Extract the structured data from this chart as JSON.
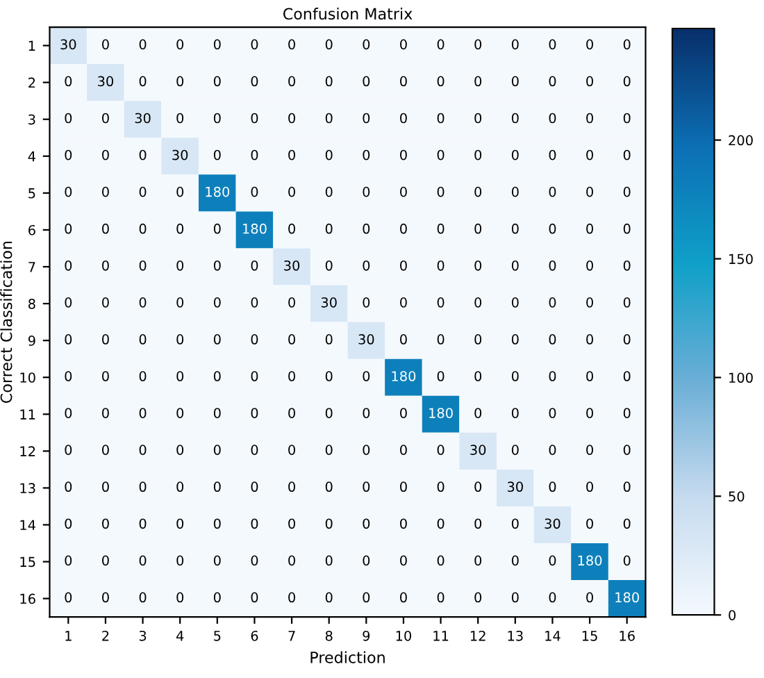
{
  "chart_data": {
    "type": "heatmap",
    "title": "Confusion Matrix",
    "xlabel": "Prediction",
    "ylabel": "Correct Classification",
    "categories": [
      "1",
      "2",
      "3",
      "4",
      "5",
      "6",
      "7",
      "8",
      "9",
      "10",
      "11",
      "12",
      "13",
      "14",
      "15",
      "16"
    ],
    "y_categories": [
      "1",
      "2",
      "3",
      "4",
      "5",
      "6",
      "7",
      "8",
      "9",
      "10",
      "11",
      "12",
      "13",
      "14",
      "15",
      "16"
    ],
    "cells": [
      [
        30,
        0,
        0,
        0,
        0,
        0,
        0,
        0,
        0,
        0,
        0,
        0,
        0,
        0,
        0,
        0
      ],
      [
        0,
        30,
        0,
        0,
        0,
        0,
        0,
        0,
        0,
        0,
        0,
        0,
        0,
        0,
        0,
        0
      ],
      [
        0,
        0,
        30,
        0,
        0,
        0,
        0,
        0,
        0,
        0,
        0,
        0,
        0,
        0,
        0,
        0
      ],
      [
        0,
        0,
        0,
        30,
        0,
        0,
        0,
        0,
        0,
        0,
        0,
        0,
        0,
        0,
        0,
        0
      ],
      [
        0,
        0,
        0,
        0,
        180,
        0,
        0,
        0,
        0,
        0,
        0,
        0,
        0,
        0,
        0,
        0
      ],
      [
        0,
        0,
        0,
        0,
        0,
        180,
        0,
        0,
        0,
        0,
        0,
        0,
        0,
        0,
        0,
        0
      ],
      [
        0,
        0,
        0,
        0,
        0,
        0,
        30,
        0,
        0,
        0,
        0,
        0,
        0,
        0,
        0,
        0
      ],
      [
        0,
        0,
        0,
        0,
        0,
        0,
        0,
        30,
        0,
        0,
        0,
        0,
        0,
        0,
        0,
        0
      ],
      [
        0,
        0,
        0,
        0,
        0,
        0,
        0,
        0,
        30,
        0,
        0,
        0,
        0,
        0,
        0,
        0
      ],
      [
        0,
        0,
        0,
        0,
        0,
        0,
        0,
        0,
        0,
        180,
        0,
        0,
        0,
        0,
        0,
        0
      ],
      [
        0,
        0,
        0,
        0,
        0,
        0,
        0,
        0,
        0,
        0,
        180,
        0,
        0,
        0,
        0,
        0
      ],
      [
        0,
        0,
        0,
        0,
        0,
        0,
        0,
        0,
        0,
        0,
        0,
        30,
        0,
        0,
        0,
        0
      ],
      [
        0,
        0,
        0,
        0,
        0,
        0,
        0,
        0,
        0,
        0,
        0,
        0,
        30,
        0,
        0,
        0
      ],
      [
        0,
        0,
        0,
        0,
        0,
        0,
        0,
        0,
        0,
        0,
        0,
        0,
        0,
        30,
        0,
        0
      ],
      [
        0,
        0,
        0,
        0,
        0,
        0,
        0,
        0,
        0,
        0,
        0,
        0,
        0,
        0,
        180,
        0
      ],
      [
        0,
        0,
        0,
        0,
        0,
        0,
        0,
        0,
        0,
        0,
        0,
        0,
        0,
        0,
        0,
        180
      ]
    ],
    "clim": [
      0,
      247
    ],
    "cticks": [
      0,
      50,
      100,
      150,
      200
    ],
    "data_labels": true
  }
}
